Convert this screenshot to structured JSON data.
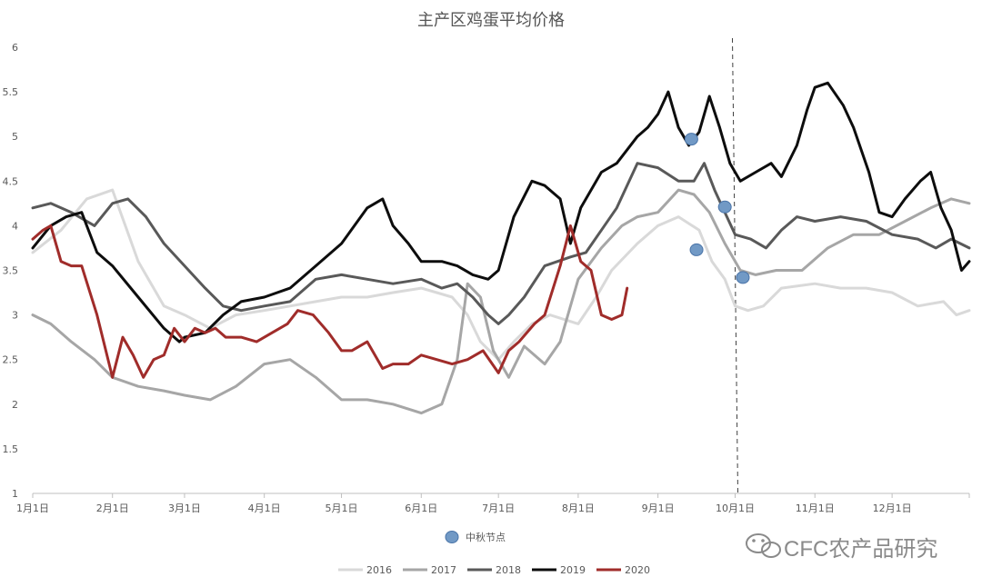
{
  "chart_data": {
    "type": "line",
    "title": "主产区鸡蛋平均价格",
    "xlabel": "",
    "ylabel": "",
    "ylim": [
      1,
      6
    ],
    "yticks": [
      "1",
      "1.5",
      "2",
      "2.5",
      "3",
      "3.5",
      "4",
      "4.5",
      "5",
      "5.5",
      "6"
    ],
    "x_tick_labels": [
      "1月1日",
      "2月1日",
      "3月1日",
      "4月1日",
      "5月1日",
      "6月1日",
      "7月1日",
      "8月1日",
      "9月1日",
      "10月1日",
      "11月1日",
      "12月1日"
    ],
    "x_tick_days": [
      1,
      32,
      60,
      91,
      121,
      152,
      182,
      213,
      244,
      274,
      305,
      335
    ],
    "xlim_days": [
      1,
      365
    ],
    "grid": false,
    "legend_position": "bottom",
    "reference_line": {
      "day": 274,
      "style": "dashed"
    },
    "series": [
      {
        "name": "2016",
        "color": "#d9d9d9",
        "width": 3,
        "x": [
          1,
          12,
          22,
          32,
          42,
          52,
          60,
          70,
          80,
          91,
          101,
          111,
          121,
          131,
          141,
          152,
          158,
          164,
          170,
          175,
          182,
          188,
          195,
          202,
          213,
          220,
          226,
          236,
          244,
          252,
          260,
          265,
          270,
          274,
          279,
          285,
          292,
          305,
          315,
          325,
          335,
          345,
          355,
          360,
          365
        ],
        "values": [
          3.7,
          3.95,
          4.3,
          4.4,
          3.6,
          3.1,
          3.0,
          2.85,
          3.0,
          3.05,
          3.1,
          3.15,
          3.2,
          3.2,
          3.25,
          3.3,
          3.25,
          3.2,
          3.0,
          2.7,
          2.5,
          2.7,
          2.9,
          3.0,
          2.9,
          3.2,
          3.5,
          3.8,
          4.0,
          4.1,
          3.95,
          3.6,
          3.4,
          3.1,
          3.05,
          3.1,
          3.3,
          3.35,
          3.3,
          3.3,
          3.25,
          3.1,
          3.15,
          3.0,
          3.05
        ]
      },
      {
        "name": "2017",
        "color": "#a6a6a6",
        "width": 3,
        "x": [
          1,
          8,
          16,
          25,
          32,
          42,
          52,
          60,
          70,
          80,
          91,
          101,
          111,
          121,
          131,
          141,
          152,
          160,
          166,
          170,
          175,
          180,
          186,
          192,
          200,
          206,
          213,
          222,
          230,
          236,
          244,
          252,
          258,
          264,
          270,
          276,
          282,
          290,
          300,
          310,
          320,
          330,
          340,
          350,
          358,
          365
        ],
        "values": [
          3.0,
          2.9,
          2.7,
          2.5,
          2.3,
          2.2,
          2.15,
          2.1,
          2.05,
          2.2,
          2.45,
          2.5,
          2.3,
          2.05,
          2.05,
          2.0,
          1.9,
          2.0,
          2.5,
          3.35,
          3.2,
          2.6,
          2.3,
          2.65,
          2.45,
          2.7,
          3.4,
          3.75,
          4.0,
          4.1,
          4.15,
          4.4,
          4.35,
          4.15,
          3.8,
          3.5,
          3.45,
          3.5,
          3.5,
          3.75,
          3.9,
          3.9,
          4.05,
          4.2,
          4.3,
          4.25
        ]
      },
      {
        "name": "2018",
        "color": "#595959",
        "width": 3,
        "x": [
          1,
          8,
          16,
          25,
          32,
          38,
          45,
          52,
          60,
          68,
          75,
          82,
          91,
          101,
          111,
          121,
          131,
          141,
          152,
          160,
          166,
          172,
          178,
          182,
          186,
          192,
          200,
          210,
          216,
          222,
          228,
          236,
          244,
          252,
          258,
          262,
          266,
          270,
          274,
          280,
          286,
          292,
          298,
          305,
          315,
          325,
          335,
          345,
          352,
          358,
          365
        ],
        "values": [
          4.2,
          4.25,
          4.15,
          4.0,
          4.25,
          4.3,
          4.1,
          3.8,
          3.55,
          3.3,
          3.1,
          3.05,
          3.1,
          3.15,
          3.4,
          3.45,
          3.4,
          3.35,
          3.4,
          3.3,
          3.35,
          3.2,
          3.0,
          2.9,
          3.0,
          3.2,
          3.55,
          3.65,
          3.7,
          3.95,
          4.2,
          4.7,
          4.65,
          4.5,
          4.5,
          4.7,
          4.4,
          4.15,
          3.9,
          3.85,
          3.75,
          3.95,
          4.1,
          4.05,
          4.1,
          4.05,
          3.9,
          3.85,
          3.75,
          3.85,
          3.75
        ]
      },
      {
        "name": "2019",
        "color": "#0d0d0d",
        "width": 3,
        "x": [
          1,
          8,
          14,
          20,
          26,
          32,
          42,
          52,
          58,
          60,
          68,
          75,
          82,
          91,
          101,
          111,
          121,
          131,
          137,
          141,
          147,
          152,
          160,
          166,
          172,
          178,
          182,
          188,
          195,
          200,
          206,
          210,
          214,
          222,
          228,
          236,
          240,
          244,
          248,
          252,
          256,
          260,
          264,
          268,
          272,
          276,
          282,
          288,
          292,
          298,
          302,
          305,
          310,
          316,
          320,
          326,
          330,
          335,
          340,
          346,
          350,
          354,
          358,
          362,
          365
        ],
        "values": [
          3.75,
          4.0,
          4.1,
          4.15,
          3.7,
          3.55,
          3.2,
          2.85,
          2.7,
          2.75,
          2.8,
          3.0,
          3.15,
          3.2,
          3.3,
          3.55,
          3.8,
          4.2,
          4.3,
          4.0,
          3.8,
          3.6,
          3.6,
          3.55,
          3.45,
          3.4,
          3.5,
          4.1,
          4.5,
          4.45,
          4.3,
          3.8,
          4.2,
          4.6,
          4.7,
          5.0,
          5.1,
          5.25,
          5.5,
          5.1,
          4.9,
          5.05,
          5.45,
          5.1,
          4.7,
          4.5,
          4.6,
          4.7,
          4.55,
          4.9,
          5.3,
          5.55,
          5.6,
          5.35,
          5.1,
          4.6,
          4.15,
          4.1,
          4.3,
          4.5,
          4.6,
          4.2,
          3.95,
          3.5,
          3.6
        ]
      },
      {
        "name": "2020",
        "color": "#a02c2a",
        "width": 3,
        "x": [
          1,
          5,
          8,
          12,
          16,
          20,
          26,
          32,
          36,
          40,
          44,
          48,
          52,
          56,
          60,
          64,
          68,
          72,
          76,
          82,
          88,
          94,
          100,
          104,
          110,
          116,
          121,
          125,
          131,
          137,
          141,
          147,
          152,
          158,
          164,
          170,
          176,
          182,
          186,
          190,
          196,
          200,
          206,
          210,
          214,
          218,
          222,
          226,
          230,
          232
        ],
        "values": [
          3.85,
          3.95,
          4.0,
          3.6,
          3.55,
          3.55,
          3.0,
          2.3,
          2.75,
          2.55,
          2.3,
          2.5,
          2.55,
          2.85,
          2.7,
          2.85,
          2.8,
          2.85,
          2.75,
          2.75,
          2.7,
          2.8,
          2.9,
          3.05,
          3.0,
          2.8,
          2.6,
          2.6,
          2.7,
          2.4,
          2.45,
          2.45,
          2.55,
          2.5,
          2.45,
          2.5,
          2.6,
          2.35,
          2.6,
          2.7,
          2.9,
          3.0,
          3.55,
          4.0,
          3.6,
          3.5,
          3.0,
          2.95,
          3.0,
          3.3
        ]
      }
    ],
    "markers": {
      "name": "中秋节点",
      "color": "#7199c5",
      "edge_color": "#4a74a8",
      "points": [
        {
          "x": 257,
          "y": 4.97
        },
        {
          "x": 259,
          "y": 3.73
        },
        {
          "x": 270,
          "y": 4.21
        },
        {
          "x": 277,
          "y": 3.42
        }
      ]
    }
  },
  "watermark": {
    "text": "CFC农产品研究",
    "icon": "wechat-icon"
  }
}
